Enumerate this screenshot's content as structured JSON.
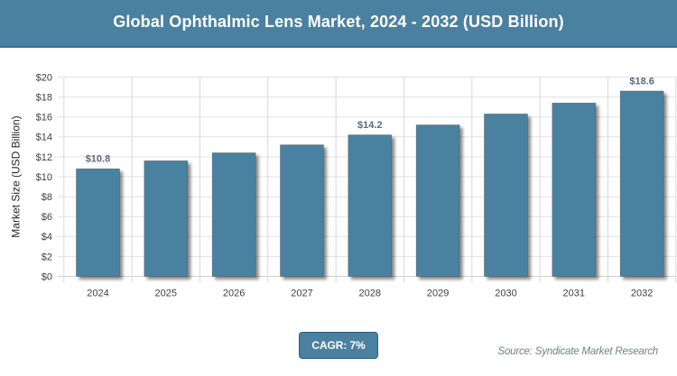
{
  "header": {
    "title": "Global Ophthalmic Lens Market, 2024 - 2032 (USD Billion)"
  },
  "chart_data": {
    "type": "bar",
    "title": "Global Ophthalmic Lens Market, 2024 - 2032 (USD Billion)",
    "categories": [
      "2024",
      "2025",
      "2026",
      "2027",
      "2028",
      "2029",
      "2030",
      "2031",
      "2032"
    ],
    "values": [
      10.8,
      11.6,
      12.4,
      13.2,
      14.2,
      15.2,
      16.3,
      17.4,
      18.6
    ],
    "data_labels": [
      "$10.8",
      "",
      "",
      "",
      "$14.2",
      "",
      "",
      "",
      "$18.6"
    ],
    "xlabel": "",
    "ylabel": "Market Size (USD Billion)",
    "ylim": [
      0,
      20
    ],
    "ytick_step": 2,
    "ytick_prefix": "$",
    "grid": true,
    "legend": "none"
  },
  "footer": {
    "cagr_label": "CAGR: 7%",
    "source": "Source: Syndicate Market Research"
  },
  "colors": {
    "accent_teal": "#4a81a1",
    "header_border": "#3d6f90",
    "bar_fill": "#4a81a1",
    "bar_stroke": "rgba(62,58,48,0.42)",
    "grid_horizontal": "#e2e2e2",
    "grid_vertical": "#d8d8d8",
    "axis_line": "#d0d0d0",
    "tick_label": "#404040",
    "axis_title": "#262626",
    "data_label": "#5a6b7e",
    "source_text": "#6f8089",
    "badge_border": "#2d5f7e"
  }
}
